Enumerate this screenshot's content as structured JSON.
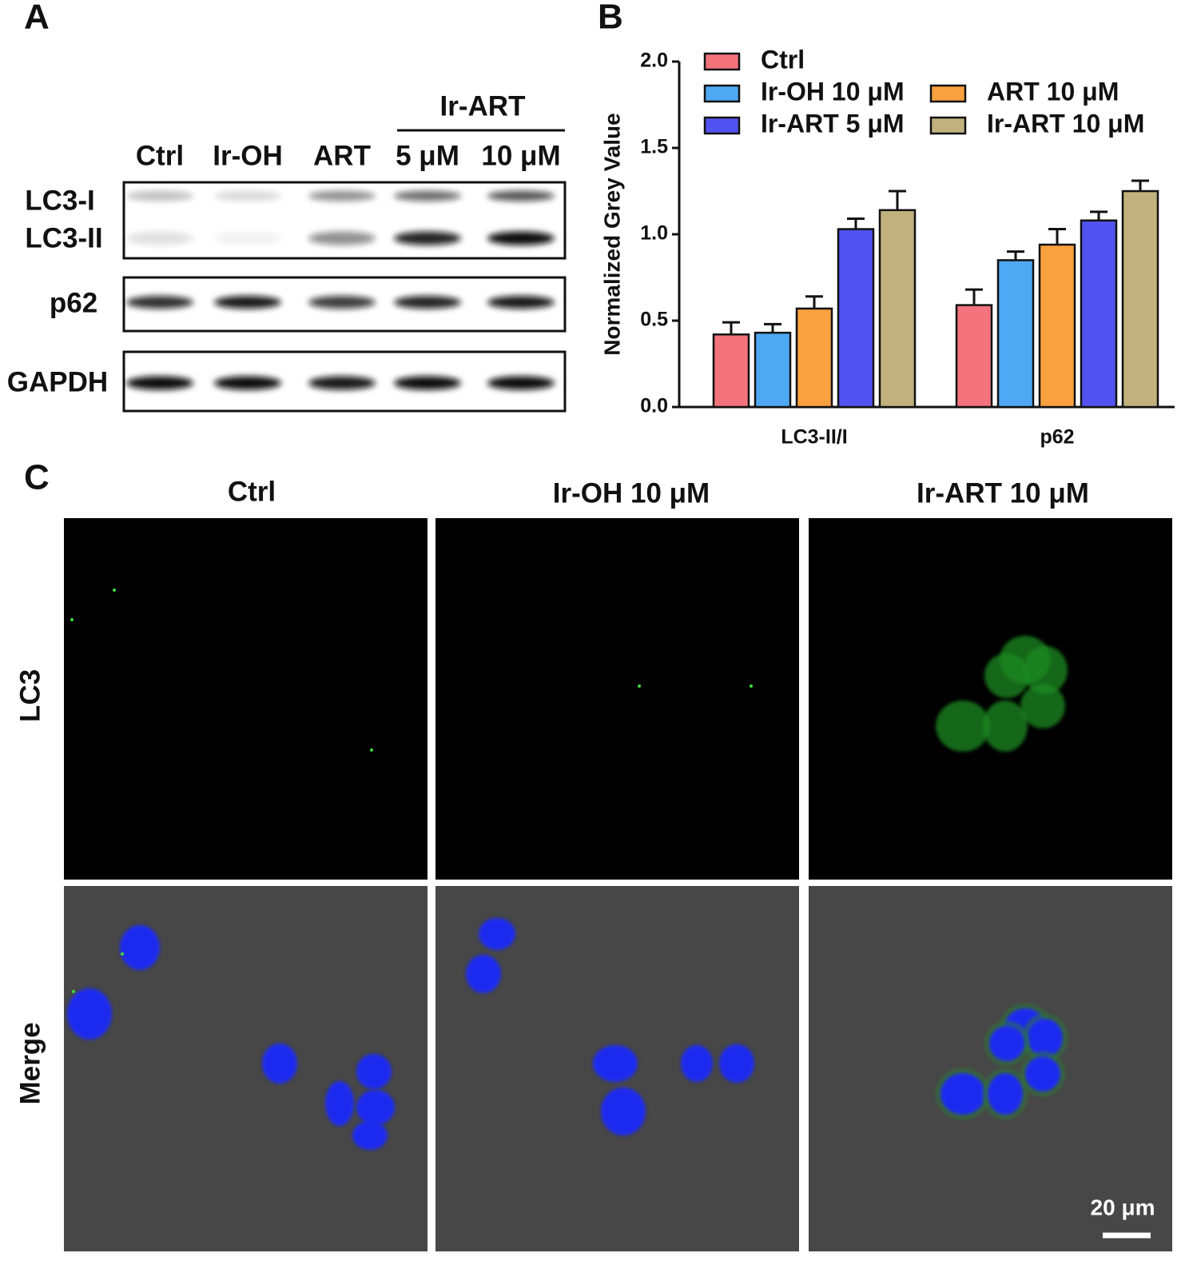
{
  "panels": {
    "a": "A",
    "b": "B",
    "c": "C"
  },
  "blot": {
    "group_label": "Ir-ART",
    "lanes": [
      "Ctrl",
      "Ir-OH",
      "ART",
      "5 μM",
      "10 μM"
    ],
    "rows": [
      "LC3-I",
      "LC3-II",
      "p62",
      "GAPDH"
    ]
  },
  "chart_data": {
    "type": "bar",
    "ylabel": "Normalized Grey Value",
    "categories": [
      "LC3-II/I",
      "p62"
    ],
    "series": [
      {
        "name": "Ctrl",
        "color": "#f2737c",
        "values": [
          0.42,
          0.59
        ],
        "errors": [
          0.07,
          0.09
        ]
      },
      {
        "name": "Ir-OH 10 μM",
        "color": "#4ea8f2",
        "values": [
          0.43,
          0.85
        ],
        "errors": [
          0.05,
          0.05
        ]
      },
      {
        "name": "ART 10 μM",
        "color": "#f9a03f",
        "values": [
          0.57,
          0.94
        ],
        "errors": [
          0.07,
          0.09
        ]
      },
      {
        "name": "Ir-ART 5 μM",
        "color": "#5252f0",
        "values": [
          1.03,
          1.08
        ],
        "errors": [
          0.06,
          0.05
        ]
      },
      {
        "name": "Ir-ART 10 μM",
        "color": "#c0b17e",
        "values": [
          1.14,
          1.25
        ],
        "errors": [
          0.11,
          0.06
        ]
      }
    ],
    "ylim": [
      0,
      2
    ],
    "yticks": [
      {
        "value": 0,
        "label": "0.0"
      },
      0.5,
      {
        "value": 1,
        "label": "1.0"
      },
      1.5,
      {
        "value": 2,
        "label": "2.0"
      }
    ]
  },
  "microscopy": {
    "columns": [
      "Ctrl",
      "Ir-OH 10 μM",
      "Ir-ART 10 μM"
    ],
    "rows": [
      "LC3",
      "Merge"
    ],
    "scale_bar": "20 μm"
  }
}
